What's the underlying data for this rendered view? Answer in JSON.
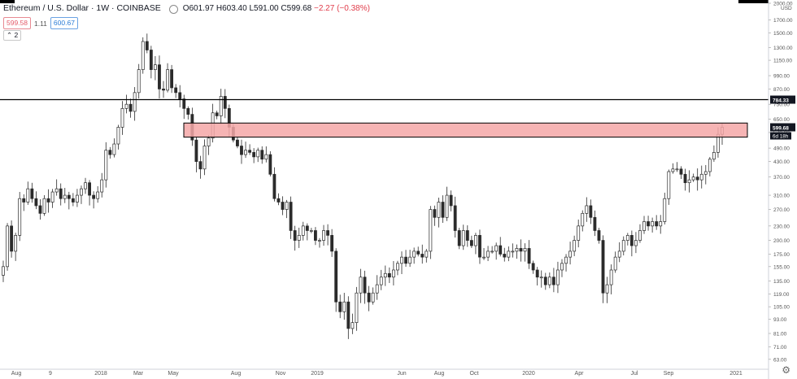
{
  "header": {
    "title": "Ethereum / U.S. Dollar · 1W · COINBASE",
    "open": "O601.97",
    "high": "H603.40",
    "low": "L591.00",
    "close": "C599.68",
    "change": "−2.27 (−0.38%)"
  },
  "quote": {
    "bid": "599.58",
    "spread": "1.11",
    "ask": "600.67"
  },
  "indicator_count": "2",
  "currency": "USD",
  "price_axis": {
    "labels": [
      "2000.00",
      "1700.00",
      "1500.00",
      "1300.00",
      "1150.00",
      "990.00",
      "870.00",
      "750.00",
      "650.00",
      "570.00",
      "490.00",
      "430.00",
      "370.00",
      "310.00",
      "270.00",
      "230.00",
      "200.00",
      "175.00",
      "155.00",
      "135.00",
      "119.00",
      "105.00",
      "93.00",
      "81.00",
      "71.00",
      "63.00"
    ]
  },
  "time_axis": {
    "labels": [
      "Aug",
      "9",
      "2018",
      "Mar",
      "May",
      "Aug",
      "Nov",
      "2019",
      "Jun",
      "Aug",
      "Oct",
      "2020",
      "Apr",
      "Jul",
      "Sep",
      "2021"
    ]
  },
  "markers": {
    "hline_label": "784.33",
    "last_price_label": "599.68",
    "countdown_label": "6d 18h"
  },
  "colors": {
    "zone_fill": "#f4a7a7",
    "zone_border": "#000000",
    "up_candle": "#ffffff",
    "down_candle": "#2b2b2b",
    "axis_text": "#555555",
    "last_price_bg": "#131722"
  },
  "chart_data": {
    "type": "candlestick",
    "symbol": "ETH/USD",
    "interval": "1W",
    "ylim": [
      60,
      2000
    ],
    "log_scale": true,
    "horizontal_line": 784.33,
    "resistance_zone": [
      545,
      625
    ],
    "last_price": 599.68,
    "weekly_closes": [
      155,
      230,
      180,
      210,
      300,
      290,
      330,
      300,
      280,
      260,
      300,
      290,
      320,
      330,
      300,
      310,
      300,
      290,
      310,
      330,
      350,
      310,
      300,
      320,
      360,
      480,
      460,
      510,
      600,
      720,
      750,
      700,
      840,
      1050,
      1380,
      1270,
      1050,
      1100,
      870,
      860,
      1050,
      880,
      840,
      790,
      720,
      680,
      530,
      430,
      400,
      500,
      540,
      690,
      670,
      810,
      720,
      600,
      530,
      500,
      460,
      480,
      470,
      450,
      480,
      440,
      460,
      380,
      300,
      290,
      270,
      290,
      220,
      200,
      210,
      230,
      220,
      220,
      200,
      200,
      220,
      210,
      180,
      110,
      100,
      110,
      85,
      90,
      120,
      140,
      120,
      110,
      120,
      130,
      140,
      145,
      140,
      150,
      160,
      170,
      160,
      170,
      180,
      175,
      170,
      180,
      270,
      250,
      290,
      250,
      310,
      280,
      220,
      190,
      220,
      200,
      190,
      210,
      170,
      170,
      180,
      180,
      190,
      175,
      170,
      180,
      180,
      185,
      180,
      185,
      160,
      150,
      140,
      140,
      130,
      140,
      130,
      150,
      160,
      170,
      180,
      200,
      230,
      260,
      280,
      250,
      220,
      200,
      120,
      130,
      150,
      170,
      180,
      200,
      210,
      190,
      200,
      220,
      240,
      230,
      240,
      230,
      240,
      300,
      390,
      400,
      400,
      380,
      350,
      360,
      370,
      360,
      380,
      390,
      440,
      470,
      560,
      600
    ]
  }
}
